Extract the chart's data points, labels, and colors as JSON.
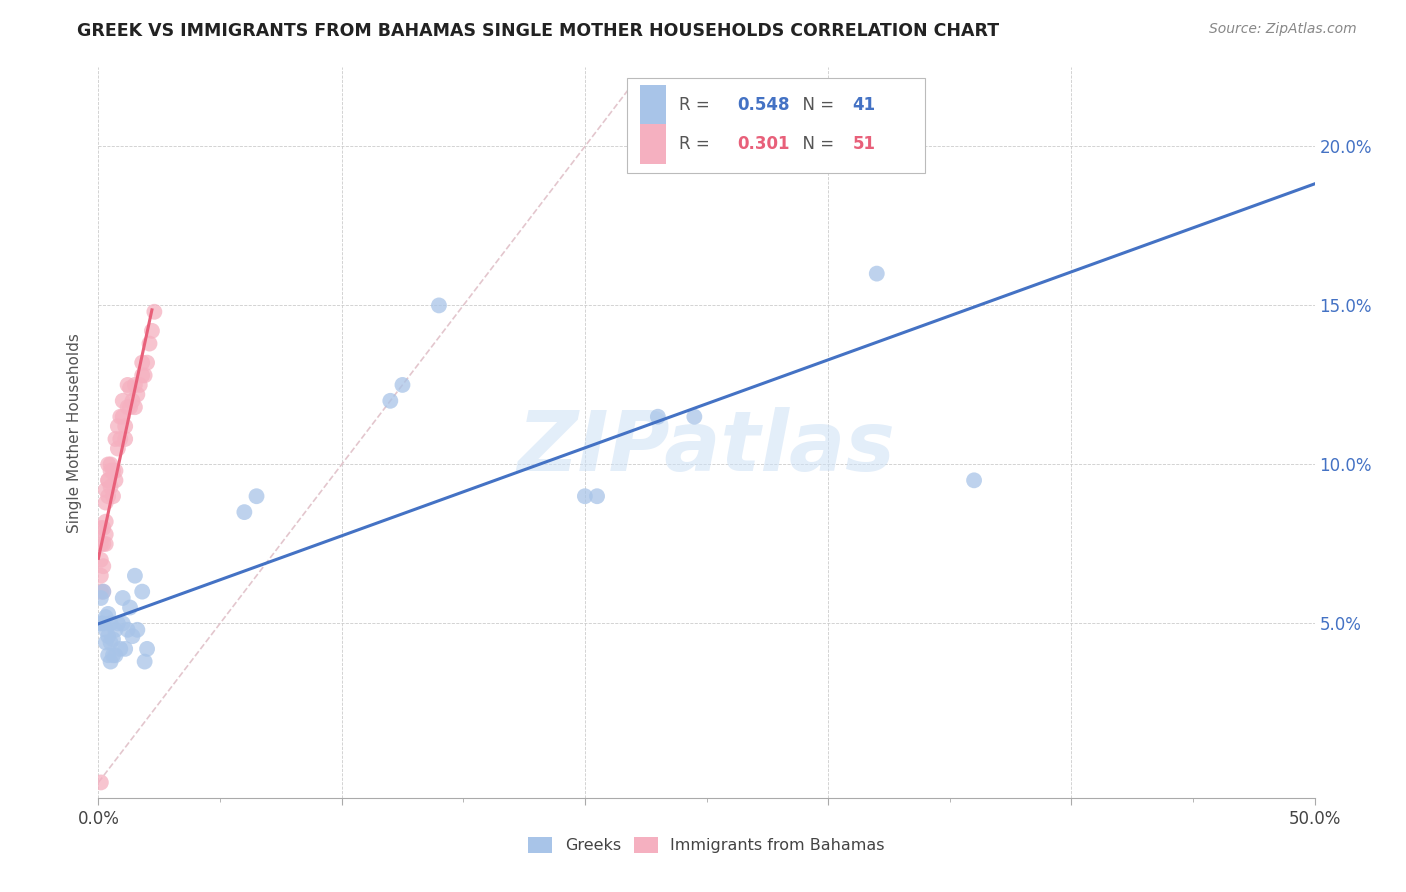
{
  "title": "GREEK VS IMMIGRANTS FROM BAHAMAS SINGLE MOTHER HOUSEHOLDS CORRELATION CHART",
  "source": "Source: ZipAtlas.com",
  "ylabel": "Single Mother Households",
  "xlim": [
    0.0,
    0.5
  ],
  "ylim": [
    -0.005,
    0.225
  ],
  "background_color": "#ffffff",
  "watermark": "ZIPatlas",
  "greeks_x": [
    0.001,
    0.001,
    0.002,
    0.002,
    0.003,
    0.003,
    0.003,
    0.004,
    0.004,
    0.004,
    0.005,
    0.005,
    0.005,
    0.006,
    0.006,
    0.007,
    0.007,
    0.008,
    0.009,
    0.01,
    0.01,
    0.011,
    0.012,
    0.013,
    0.014,
    0.015,
    0.016,
    0.018,
    0.019,
    0.02,
    0.06,
    0.065,
    0.12,
    0.125,
    0.14,
    0.2,
    0.205,
    0.23,
    0.245,
    0.32,
    0.36
  ],
  "greeks_y": [
    0.05,
    0.058,
    0.05,
    0.06,
    0.048,
    0.044,
    0.052,
    0.04,
    0.046,
    0.053,
    0.038,
    0.044,
    0.05,
    0.04,
    0.045,
    0.04,
    0.048,
    0.05,
    0.042,
    0.05,
    0.058,
    0.042,
    0.048,
    0.055,
    0.046,
    0.065,
    0.048,
    0.06,
    0.038,
    0.042,
    0.085,
    0.09,
    0.12,
    0.125,
    0.15,
    0.09,
    0.09,
    0.115,
    0.115,
    0.16,
    0.095
  ],
  "bahamas_x": [
    0.001,
    0.001,
    0.001,
    0.001,
    0.001,
    0.002,
    0.002,
    0.002,
    0.002,
    0.003,
    0.003,
    0.003,
    0.003,
    0.003,
    0.004,
    0.004,
    0.004,
    0.004,
    0.005,
    0.005,
    0.005,
    0.006,
    0.006,
    0.007,
    0.007,
    0.007,
    0.008,
    0.008,
    0.009,
    0.009,
    0.01,
    0.01,
    0.011,
    0.011,
    0.012,
    0.012,
    0.013,
    0.013,
    0.014,
    0.015,
    0.015,
    0.016,
    0.017,
    0.018,
    0.018,
    0.019,
    0.02,
    0.021,
    0.022,
    0.023,
    0.001
  ],
  "bahamas_y": [
    0.065,
    0.07,
    0.075,
    0.08,
    0.06,
    0.06,
    0.068,
    0.075,
    0.08,
    0.075,
    0.082,
    0.088,
    0.092,
    0.078,
    0.095,
    0.1,
    0.09,
    0.095,
    0.1,
    0.093,
    0.098,
    0.098,
    0.09,
    0.098,
    0.095,
    0.108,
    0.105,
    0.112,
    0.108,
    0.115,
    0.115,
    0.12,
    0.112,
    0.108,
    0.118,
    0.125,
    0.118,
    0.124,
    0.12,
    0.118,
    0.125,
    0.122,
    0.125,
    0.128,
    0.132,
    0.128,
    0.132,
    0.138,
    0.142,
    0.148,
    0.0
  ],
  "greeks_color": "#a8c4e8",
  "bahamas_color": "#f5b0c0",
  "greeks_line_color": "#4472c4",
  "bahamas_line_color": "#e8607a",
  "diagonal_color": "#e0c0c8",
  "legend_R1": "0.548",
  "legend_N1": "41",
  "legend_R2": "0.301",
  "legend_N2": "51",
  "xtick_values": [
    0.0,
    0.1,
    0.2,
    0.3,
    0.4,
    0.5
  ],
  "xtick_labels_bottom": [
    "0.0%",
    "",
    "",
    "",
    "",
    "50.0%"
  ],
  "minor_xtick_values": [
    0.05,
    0.15,
    0.25,
    0.35,
    0.45
  ],
  "ytick_values": [
    0.05,
    0.1,
    0.15,
    0.2
  ],
  "ytick_labels": [
    "5.0%",
    "10.0%",
    "15.0%",
    "20.0%"
  ]
}
